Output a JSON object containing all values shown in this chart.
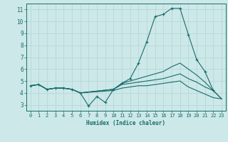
{
  "background_color": "#cce8e8",
  "grid_color": "#b8d8d8",
  "line_color": "#1a6b6b",
  "xlabel": "Humidex (Indice chaleur)",
  "xlim": [
    -0.5,
    23.5
  ],
  "ylim": [
    2.5,
    11.5
  ],
  "xticks": [
    0,
    1,
    2,
    3,
    4,
    5,
    6,
    7,
    8,
    9,
    10,
    11,
    12,
    13,
    14,
    15,
    16,
    17,
    18,
    19,
    20,
    21,
    22,
    23
  ],
  "yticks": [
    3,
    4,
    5,
    6,
    7,
    8,
    9,
    10,
    11
  ],
  "lines": [
    {
      "x": [
        0,
        1,
        2,
        3,
        4,
        5,
        6,
        7,
        8,
        9,
        10,
        11,
        12,
        13,
        14,
        15,
        16,
        17,
        18,
        19,
        20,
        21,
        22
      ],
      "y": [
        4.6,
        4.7,
        4.3,
        4.4,
        4.4,
        4.3,
        4.0,
        2.9,
        3.7,
        3.2,
        4.3,
        4.8,
        5.2,
        6.5,
        8.3,
        10.4,
        10.6,
        11.1,
        11.1,
        8.9,
        6.8,
        5.8,
        4.2
      ],
      "has_markers": true
    },
    {
      "x": [
        0,
        1,
        2,
        3,
        4,
        5,
        6,
        10,
        11,
        12,
        13,
        14,
        15,
        16,
        17,
        18,
        19,
        20,
        21,
        22,
        23
      ],
      "y": [
        4.6,
        4.7,
        4.3,
        4.4,
        4.4,
        4.3,
        4.0,
        4.3,
        4.8,
        5.0,
        5.2,
        5.4,
        5.6,
        5.8,
        6.2,
        6.5,
        6.0,
        5.5,
        4.9,
        4.2,
        3.5
      ],
      "has_markers": false
    },
    {
      "x": [
        0,
        1,
        2,
        3,
        4,
        5,
        6,
        10,
        11,
        12,
        13,
        14,
        15,
        16,
        17,
        18,
        19,
        20,
        21,
        22,
        23
      ],
      "y": [
        4.6,
        4.7,
        4.3,
        4.4,
        4.4,
        4.3,
        4.0,
        4.3,
        4.7,
        4.8,
        4.9,
        5.0,
        5.1,
        5.2,
        5.4,
        5.6,
        5.2,
        4.9,
        4.5,
        4.2,
        3.5
      ],
      "has_markers": false
    },
    {
      "x": [
        0,
        1,
        2,
        3,
        4,
        5,
        6,
        10,
        11,
        12,
        13,
        14,
        15,
        16,
        17,
        18,
        19,
        20,
        21,
        22,
        23
      ],
      "y": [
        4.6,
        4.7,
        4.3,
        4.4,
        4.4,
        4.3,
        4.0,
        4.2,
        4.4,
        4.5,
        4.6,
        4.6,
        4.7,
        4.8,
        4.9,
        5.0,
        4.5,
        4.2,
        3.9,
        3.6,
        3.5
      ],
      "has_markers": false
    }
  ]
}
